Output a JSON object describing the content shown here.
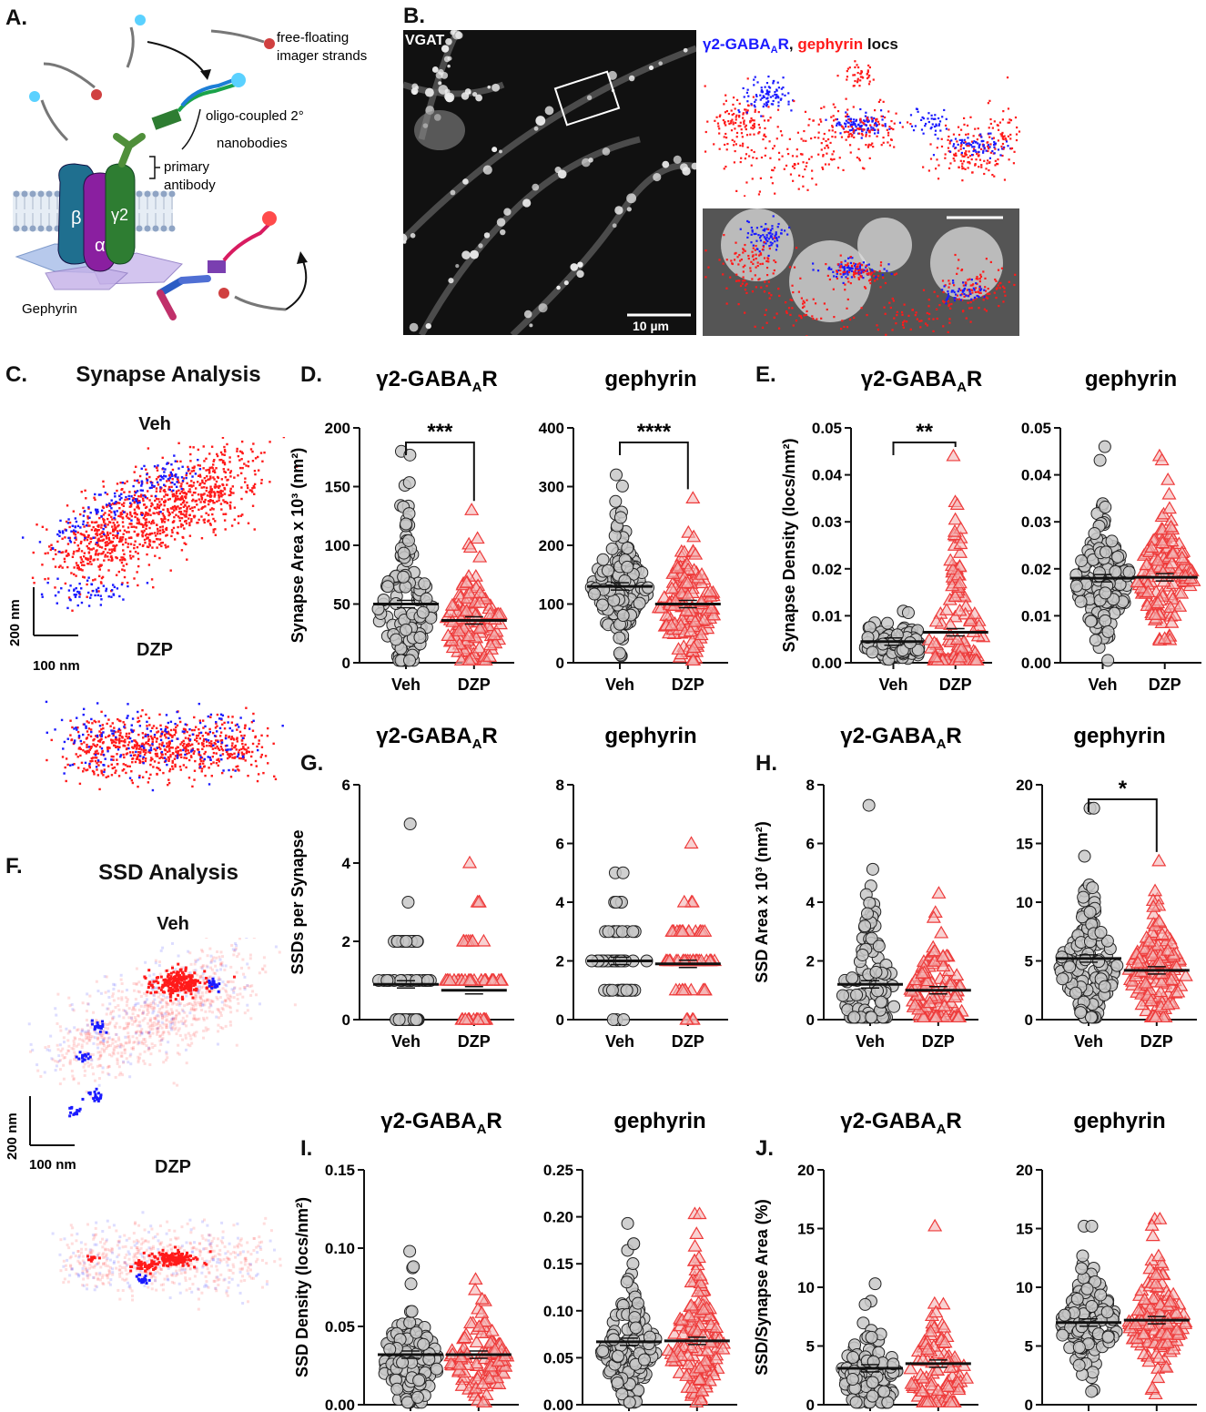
{
  "panels": {
    "A": {
      "letter": "A."
    },
    "B": {
      "letter": "B.",
      "vgat": "VGAT",
      "scale": "10 µm",
      "legend_blue": "γ2-GABA",
      "legend_sub": "A",
      "legend_blue_end": "R",
      "legend_sep": ",",
      "legend_red": "gephyrin",
      "legend_end": "locs"
    },
    "C": {
      "letter": "C.",
      "title": "Synapse Analysis",
      "veh": "Veh",
      "dzp": "DZP",
      "scale_y": "200 nm",
      "scale_x": "100 nm"
    },
    "D": {
      "letter": "D."
    },
    "E": {
      "letter": "E."
    },
    "F": {
      "letter": "F.",
      "title": "SSD Analysis",
      "veh": "Veh",
      "dzp": "DZP",
      "scale_y": "200 nm",
      "scale_x": "100 nm"
    },
    "G": {
      "letter": "G."
    },
    "H": {
      "letter": "H."
    },
    "I": {
      "letter": "I."
    },
    "J": {
      "letter": "J."
    }
  },
  "schematic": {
    "free_floating": "free-floating",
    "imager_strands": "imager strands",
    "oligo_coupled": "oligo-coupled 2°",
    "nanobodies": "nanobodies",
    "primary": "primary",
    "antibody": "antibody",
    "gephyrin": "Gephyrin",
    "beta": "β",
    "alpha": "α",
    "gamma2": "γ2"
  },
  "colors": {
    "veh_fill": "#c8c8c8",
    "veh_stroke": "#222222",
    "dzp_stroke": "#ee3b3b",
    "dzp_fill": "#f4b4b4",
    "blue": "#1a1aff",
    "red": "#ff1a1a"
  },
  "chart_data": [
    {
      "id": "D1",
      "type": "scatter",
      "title": "γ2-GABA",
      "title_sub": "A",
      "title_end": "R",
      "ylabel": "Synapse Area x 10³ (nm²)",
      "ylim": [
        0,
        200
      ],
      "yticks": [
        "0",
        "50",
        "100",
        "150",
        "200"
      ],
      "categories": [
        "Veh",
        "DZP"
      ],
      "means": [
        50,
        36
      ],
      "sig": "***",
      "series": [
        {
          "name": "Veh",
          "max": 180,
          "center": 45,
          "n": 120
        },
        {
          "name": "DZP",
          "max": 130,
          "center": 32,
          "n": 120
        }
      ]
    },
    {
      "id": "D2",
      "type": "scatter",
      "title": "gephyrin",
      "title_sub": "",
      "title_end": "",
      "ylabel": "",
      "ylim": [
        0,
        400
      ],
      "yticks": [
        "0",
        "100",
        "200",
        "300",
        "400"
      ],
      "categories": [
        "Veh",
        "DZP"
      ],
      "means": [
        130,
        100
      ],
      "sig": "****",
      "series": [
        {
          "name": "Veh",
          "max": 320,
          "center": 125,
          "n": 140
        },
        {
          "name": "DZP",
          "max": 280,
          "center": 95,
          "n": 140
        }
      ]
    },
    {
      "id": "E1",
      "type": "scatter",
      "title": "γ2-GABA",
      "title_sub": "A",
      "title_end": "R",
      "ylabel": "Synapse Density (locs/nm²)",
      "ylim": [
        0,
        0.05
      ],
      "yticks": [
        "0.00",
        "0.01",
        "0.02",
        "0.03",
        "0.04",
        "0.05"
      ],
      "categories": [
        "Veh",
        "DZP"
      ],
      "means": [
        0.0045,
        0.0065
      ],
      "sig": "**",
      "series": [
        {
          "name": "Veh",
          "max": 0.011,
          "center": 0.004,
          "n": 120
        },
        {
          "name": "DZP",
          "max": 0.044,
          "center": 0.005,
          "n": 120
        }
      ]
    },
    {
      "id": "E2",
      "type": "scatter",
      "title": "gephyrin",
      "title_sub": "",
      "title_end": "",
      "ylabel": "",
      "ylim": [
        0,
        0.05
      ],
      "yticks": [
        "0.00",
        "0.01",
        "0.02",
        "0.03",
        "0.04",
        "0.05"
      ],
      "categories": [
        "Veh",
        "DZP"
      ],
      "means": [
        0.018,
        0.0182
      ],
      "sig": "",
      "series": [
        {
          "name": "Veh",
          "max": 0.046,
          "center": 0.017,
          "n": 140
        },
        {
          "name": "DZP",
          "max": 0.044,
          "center": 0.018,
          "n": 140
        }
      ]
    },
    {
      "id": "G1",
      "type": "scatter",
      "title": "γ2-GABA",
      "title_sub": "A",
      "title_end": "R",
      "ylabel": "SSDs per Synapse",
      "ylim": [
        0,
        6
      ],
      "yticks": [
        "0",
        "2",
        "4",
        "6"
      ],
      "categories": [
        "Veh",
        "DZP"
      ],
      "means": [
        0.9,
        0.75
      ],
      "sig": "",
      "discrete": true,
      "series": [
        {
          "name": "Veh",
          "max": 5,
          "center": 1,
          "n": 60
        },
        {
          "name": "DZP",
          "max": 4,
          "center": 1,
          "n": 60
        }
      ]
    },
    {
      "id": "G2",
      "type": "scatter",
      "title": "gephyrin",
      "title_sub": "",
      "title_end": "",
      "ylabel": "",
      "ylim": [
        0,
        8
      ],
      "yticks": [
        "0",
        "2",
        "4",
        "6",
        "8"
      ],
      "categories": [
        "Veh",
        "DZP"
      ],
      "means": [
        2.0,
        1.9
      ],
      "sig": "",
      "discrete": true,
      "series": [
        {
          "name": "Veh",
          "max": 5,
          "center": 2,
          "n": 60
        },
        {
          "name": "DZP",
          "max": 6,
          "center": 2,
          "n": 60
        }
      ]
    },
    {
      "id": "H1",
      "type": "scatter",
      "title": "γ2-GABA",
      "title_sub": "A",
      "title_end": "R",
      "ylabel": "SSD Area x 10³ (nm²)",
      "ylim": [
        0,
        8
      ],
      "yticks": [
        "0",
        "2",
        "4",
        "6",
        "8"
      ],
      "categories": [
        "Veh",
        "DZP"
      ],
      "means": [
        1.2,
        1.0
      ],
      "sig": "",
      "series": [
        {
          "name": "Veh",
          "max": 7.3,
          "center": 0.9,
          "n": 110
        },
        {
          "name": "DZP",
          "max": 4.3,
          "center": 0.8,
          "n": 110
        }
      ]
    },
    {
      "id": "H2",
      "type": "scatter",
      "title": "gephyrin",
      "title_sub": "",
      "title_end": "",
      "ylabel": "",
      "ylim": [
        0,
        20
      ],
      "yticks": [
        "0",
        "5",
        "10",
        "15",
        "20"
      ],
      "categories": [
        "Veh",
        "DZP"
      ],
      "means": [
        5.2,
        4.2
      ],
      "sig": "*",
      "series": [
        {
          "name": "Veh",
          "max": 18,
          "center": 4.5,
          "n": 140
        },
        {
          "name": "DZP",
          "max": 13.5,
          "center": 3.8,
          "n": 140
        }
      ]
    },
    {
      "id": "I1",
      "type": "scatter",
      "title": "γ2-GABA",
      "title_sub": "A",
      "title_end": "R",
      "ylabel": "SSD Density (locs/nm²)",
      "ylim": [
        0,
        0.15
      ],
      "yticks": [
        "0.00",
        "0.05",
        "0.10",
        "0.15"
      ],
      "categories": [
        "Veh",
        "DZP"
      ],
      "means": [
        0.032,
        0.032
      ],
      "sig": "",
      "series": [
        {
          "name": "Veh",
          "max": 0.098,
          "center": 0.028,
          "n": 110
        },
        {
          "name": "DZP",
          "max": 0.08,
          "center": 0.028,
          "n": 110
        }
      ]
    },
    {
      "id": "I2",
      "type": "scatter",
      "title": "gephyrin",
      "title_sub": "",
      "title_end": "",
      "ylabel": "",
      "ylim": [
        0,
        0.25
      ],
      "yticks": [
        "0.00",
        "0.05",
        "0.10",
        "0.15",
        "0.20",
        "0.25"
      ],
      "categories": [
        "Veh",
        "DZP"
      ],
      "means": [
        0.067,
        0.068
      ],
      "sig": "",
      "series": [
        {
          "name": "Veh",
          "max": 0.193,
          "center": 0.06,
          "n": 140
        },
        {
          "name": "DZP",
          "max": 0.203,
          "center": 0.062,
          "n": 140
        }
      ]
    },
    {
      "id": "J1",
      "type": "scatter",
      "title": "γ2-GABA",
      "title_sub": "A",
      "title_end": "R",
      "ylabel": "SSD/Synapse Area (%)",
      "ylim": [
        0,
        20
      ],
      "yticks": [
        "0",
        "5",
        "10",
        "15",
        "20"
      ],
      "categories": [
        "Veh",
        "DZP"
      ],
      "means": [
        3.1,
        3.5
      ],
      "sig": "",
      "series": [
        {
          "name": "Veh",
          "max": 10.3,
          "center": 2.5,
          "n": 110
        },
        {
          "name": "DZP",
          "max": 15.2,
          "center": 2.6,
          "n": 110
        }
      ]
    },
    {
      "id": "J2",
      "type": "scatter",
      "title": "gephyrin",
      "title_sub": "",
      "title_end": "",
      "ylabel": "",
      "ylim": [
        0,
        20
      ],
      "yticks": [
        "0",
        "5",
        "10",
        "15",
        "20"
      ],
      "categories": [
        "Veh",
        "DZP"
      ],
      "means": [
        7.0,
        7.2
      ],
      "sig": "",
      "series": [
        {
          "name": "Veh",
          "max": 15.2,
          "center": 6.8,
          "n": 140
        },
        {
          "name": "DZP",
          "max": 15.8,
          "center": 7.0,
          "n": 140
        }
      ]
    }
  ]
}
